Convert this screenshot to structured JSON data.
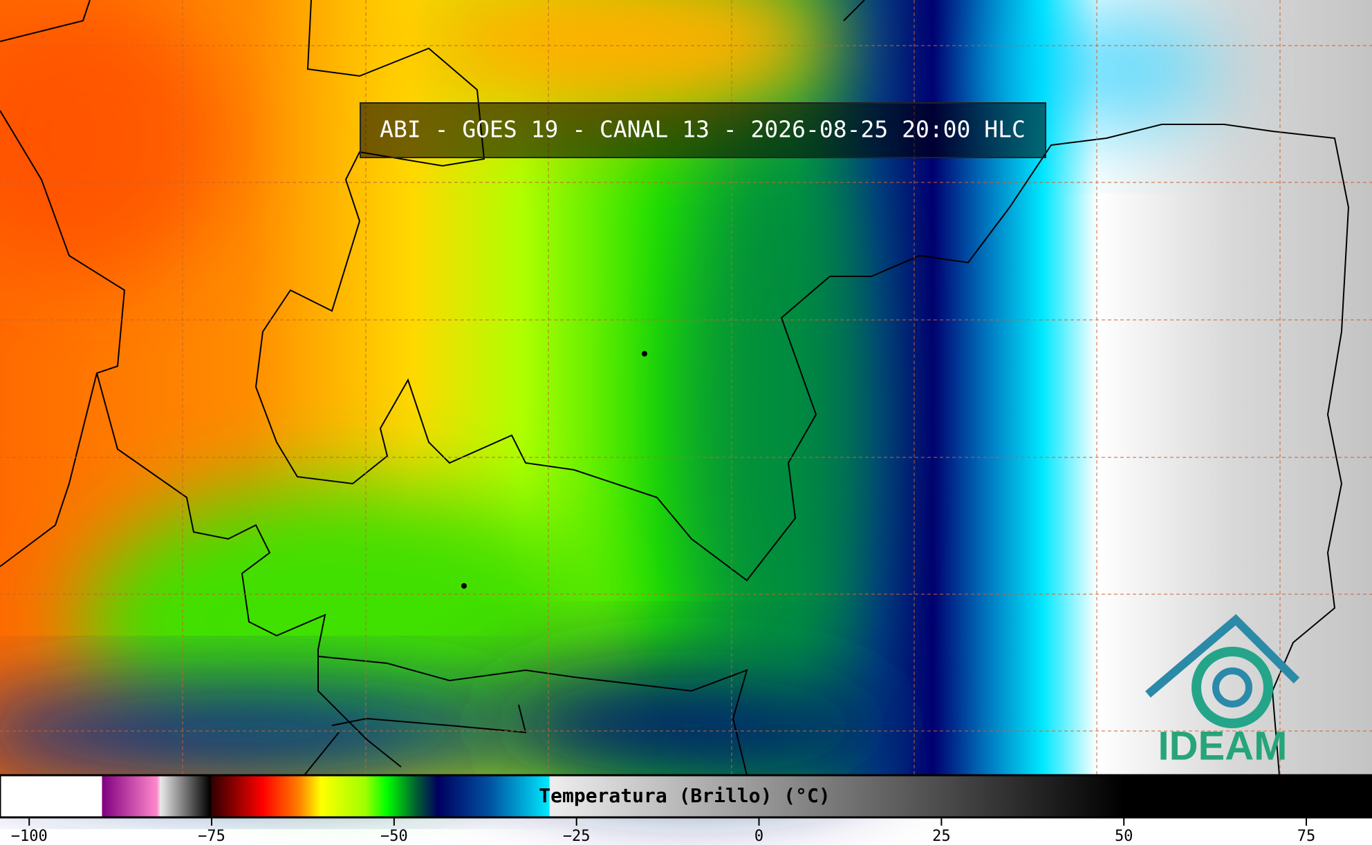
{
  "title": "ABI - GOES 19 - CANAL 13 - 2026-08-25 20:00 HLC",
  "logo": "IDEAM",
  "colorbar": {
    "type": "colorbar",
    "label": "Temperatura (Brillo) (°C)",
    "xlim": [
      -104,
      84
    ],
    "xticks": [
      {
        "value": -100,
        "label": "−100"
      },
      {
        "value": -75,
        "label": "−75"
      },
      {
        "value": -50,
        "label": "−50"
      },
      {
        "value": -25,
        "label": "−25"
      },
      0,
      25,
      50,
      75
    ],
    "stops": [
      {
        "value": -104,
        "color": "#ffffff"
      },
      {
        "value": -90,
        "color": "#ffffff"
      },
      {
        "value": -90,
        "color": "#800080"
      },
      {
        "value": -82.5,
        "color": "#ff88cc"
      },
      {
        "value": -82,
        "color": "#e8e8e8"
      },
      {
        "value": -75.2,
        "color": "#000000"
      },
      {
        "value": -75,
        "color": "#300000"
      },
      {
        "value": -68,
        "color": "#ff0000"
      },
      {
        "value": -63,
        "color": "#ff8000"
      },
      {
        "value": -60,
        "color": "#ffff00"
      },
      {
        "value": -54,
        "color": "#a0ff00"
      },
      {
        "value": -51,
        "color": "#00ff00"
      },
      {
        "value": -47,
        "color": "#006030"
      },
      {
        "value": -44,
        "color": "#000060"
      },
      {
        "value": -37,
        "color": "#0050a0"
      },
      {
        "value": -28.8,
        "color": "#00e8ff"
      },
      {
        "value": -28.6,
        "color": "#eeeeee"
      },
      {
        "value": 50,
        "color": "#000000"
      },
      {
        "value": 84,
        "color": "#000000"
      }
    ]
  }
}
